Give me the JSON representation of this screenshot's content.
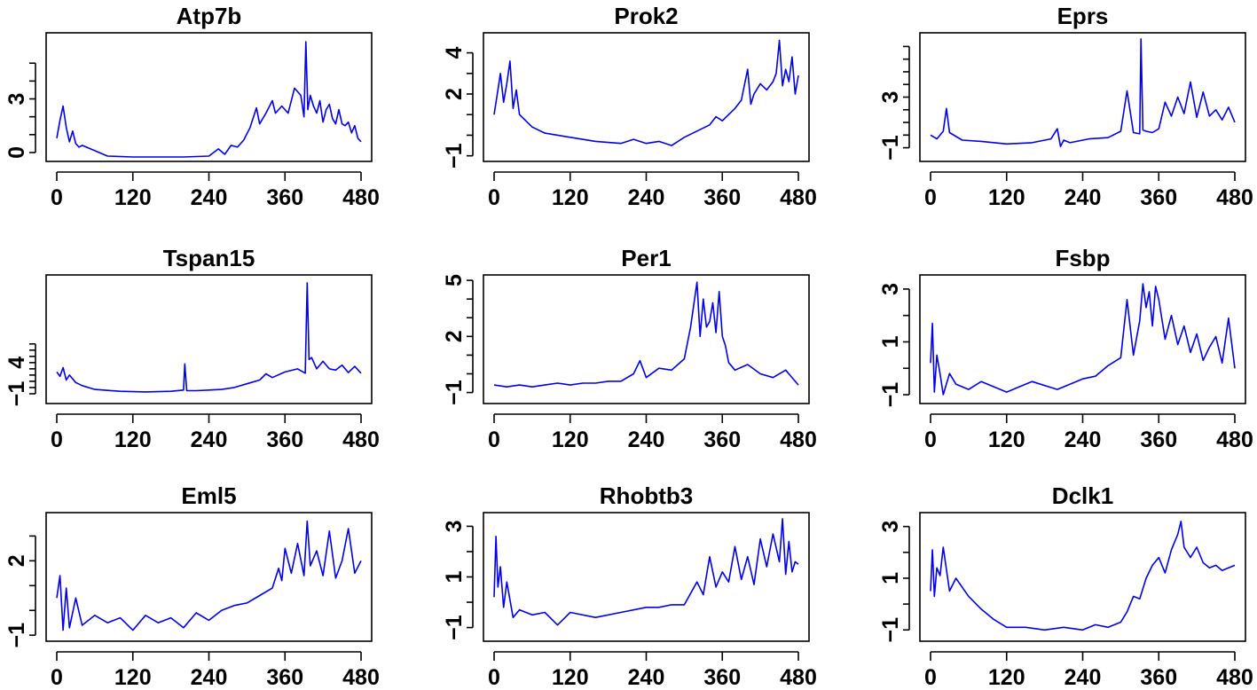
{
  "series_color": "#0000ee",
  "chart_data": [
    {
      "type": "line",
      "title": "Atp7b",
      "xlim": [
        0,
        480
      ],
      "ylim": [
        -0.3,
        6.5
      ],
      "xticks": [
        0,
        120,
        240,
        360,
        480
      ],
      "yticks": [
        0,
        3
      ],
      "ytick_labels": [
        "0",
        "3"
      ],
      "yminor": [
        0,
        1,
        2,
        3,
        4,
        5
      ],
      "x": [
        0,
        5,
        10,
        15,
        20,
        25,
        30,
        35,
        40,
        60,
        80,
        120,
        160,
        200,
        240,
        255,
        265,
        275,
        285,
        295,
        305,
        315,
        320,
        330,
        340,
        345,
        355,
        365,
        375,
        385,
        390,
        393,
        396,
        400,
        405,
        410,
        415,
        420,
        425,
        430,
        435,
        440,
        445,
        450,
        455,
        460,
        465,
        470,
        475,
        480
      ],
      "y": [
        0.8,
        1.8,
        2.6,
        1.4,
        0.6,
        1.2,
        0.5,
        0.3,
        0.4,
        0.1,
        -0.2,
        -0.25,
        -0.25,
        -0.25,
        -0.2,
        0.2,
        -0.1,
        0.4,
        0.3,
        0.7,
        1.4,
        2.5,
        1.6,
        2.2,
        2.9,
        2.2,
        2.6,
        2.2,
        3.6,
        3.2,
        2.0,
        6.2,
        2.4,
        3.2,
        2.6,
        2.2,
        2.9,
        1.7,
        2.4,
        2.7,
        1.9,
        1.6,
        2.4,
        1.6,
        1.5,
        1.7,
        1.1,
        1.5,
        0.8,
        0.6
      ]
    },
    {
      "type": "line",
      "title": "Prok2",
      "xlim": [
        0,
        480
      ],
      "ylim": [
        -1.1,
        4.8
      ],
      "xticks": [
        0,
        120,
        240,
        360,
        480
      ],
      "yticks": [
        -1,
        2,
        4
      ],
      "ytick_labels": [
        "−1",
        "2",
        "4"
      ],
      "yminor": [
        -1,
        0,
        1,
        2,
        3,
        4
      ],
      "x": [
        0,
        5,
        10,
        15,
        20,
        25,
        30,
        35,
        40,
        60,
        80,
        120,
        160,
        200,
        220,
        240,
        260,
        280,
        300,
        320,
        340,
        350,
        360,
        370,
        380,
        390,
        400,
        405,
        410,
        420,
        430,
        440,
        445,
        450,
        455,
        460,
        465,
        470,
        475,
        480
      ],
      "y": [
        1.0,
        2.0,
        3.0,
        1.6,
        2.5,
        3.6,
        1.3,
        2.2,
        1.0,
        0.4,
        0.1,
        -0.1,
        -0.3,
        -0.4,
        -0.2,
        -0.4,
        -0.3,
        -0.5,
        -0.1,
        0.2,
        0.5,
        0.9,
        0.7,
        1.0,
        1.3,
        1.7,
        3.2,
        1.5,
        2.0,
        2.5,
        2.2,
        2.6,
        3.0,
        4.6,
        2.4,
        3.2,
        2.6,
        3.8,
        2.0,
        2.9
      ]
    },
    {
      "type": "line",
      "title": "Eprs",
      "xlim": [
        0,
        480
      ],
      "ylim": [
        -1.8,
        7.8
      ],
      "xticks": [
        0,
        120,
        240,
        360,
        480
      ],
      "yticks": [
        -1,
        3
      ],
      "ytick_labels": [
        "−1",
        "3"
      ],
      "yminor": [
        -1,
        0,
        1,
        2,
        3,
        4,
        5,
        6,
        7
      ],
      "x": [
        0,
        10,
        20,
        25,
        30,
        50,
        80,
        120,
        160,
        190,
        200,
        205,
        210,
        220,
        250,
        280,
        300,
        310,
        320,
        330,
        332,
        335,
        340,
        350,
        360,
        370,
        380,
        390,
        400,
        410,
        420,
        430,
        440,
        450,
        460,
        470,
        480
      ],
      "y": [
        0.0,
        -0.3,
        0.3,
        2.1,
        0.2,
        -0.4,
        -0.5,
        -0.7,
        -0.6,
        -0.3,
        0.5,
        -0.9,
        -0.4,
        -0.6,
        -0.3,
        -0.2,
        0.3,
        3.5,
        0.2,
        0.1,
        7.6,
        0.4,
        0.3,
        0.2,
        0.5,
        2.6,
        1.5,
        3.0,
        1.7,
        4.2,
        1.4,
        3.4,
        1.5,
        2.0,
        1.2,
        2.2,
        1.0
      ]
    },
    {
      "type": "line",
      "title": "Tspan15",
      "xlim": [
        0,
        480
      ],
      "ylim": [
        -2.0,
        17.5
      ],
      "xticks": [
        0,
        120,
        240,
        360,
        480
      ],
      "yticks": [
        -1,
        4
      ],
      "ytick_labels": [
        "−1",
        "4"
      ],
      "yminor": [
        -1,
        0,
        1,
        2,
        3,
        4,
        5,
        6,
        7
      ],
      "x": [
        0,
        5,
        10,
        15,
        20,
        30,
        40,
        60,
        100,
        140,
        180,
        200,
        202,
        205,
        220,
        240,
        260,
        280,
        300,
        320,
        330,
        340,
        360,
        380,
        392,
        395,
        398,
        402,
        410,
        420,
        430,
        440,
        450,
        460,
        470,
        480
      ],
      "y": [
        2.5,
        1.8,
        3.2,
        1.2,
        2.0,
        0.8,
        0.3,
        -0.3,
        -0.6,
        -0.7,
        -0.6,
        -0.4,
        3.8,
        -0.5,
        -0.5,
        -0.4,
        -0.3,
        0.0,
        0.6,
        1.2,
        2.2,
        1.6,
        2.5,
        3.0,
        2.3,
        16.8,
        4.5,
        4.8,
        3.0,
        4.2,
        3.0,
        2.8,
        3.6,
        2.4,
        3.4,
        2.3
      ]
    },
    {
      "type": "line",
      "title": "Per1",
      "xlim": [
        0,
        480
      ],
      "ylim": [
        -1.4,
        5.1
      ],
      "xticks": [
        0,
        120,
        240,
        360,
        480
      ],
      "yticks": [
        -1,
        2,
        5
      ],
      "ytick_labels": [
        "−1",
        "2",
        "5"
      ],
      "yminor": [
        -1,
        0,
        1,
        2,
        3,
        4,
        5
      ],
      "x": [
        0,
        20,
        40,
        60,
        80,
        100,
        120,
        140,
        160,
        180,
        200,
        220,
        230,
        240,
        260,
        280,
        300,
        310,
        320,
        325,
        330,
        335,
        340,
        345,
        350,
        355,
        360,
        365,
        370,
        380,
        400,
        420,
        440,
        460,
        480
      ],
      "y": [
        -0.6,
        -0.7,
        -0.6,
        -0.7,
        -0.6,
        -0.5,
        -0.6,
        -0.5,
        -0.5,
        -0.4,
        -0.4,
        0.0,
        0.7,
        -0.2,
        0.3,
        0.2,
        0.8,
        2.5,
        4.9,
        2.0,
        4.0,
        2.5,
        2.8,
        3.8,
        2.2,
        4.4,
        2.0,
        1.5,
        0.6,
        0.2,
        0.5,
        0.0,
        -0.2,
        0.2,
        -0.6
      ]
    },
    {
      "type": "line",
      "title": "Fsbp",
      "xlim": [
        0,
        480
      ],
      "ylim": [
        -1.2,
        3.4
      ],
      "xticks": [
        0,
        120,
        240,
        360,
        480
      ],
      "yticks": [
        -1,
        1,
        3
      ],
      "ytick_labels": [
        "−1",
        "1",
        "3"
      ],
      "yminor": [
        -1,
        0,
        1,
        2,
        3
      ],
      "x": [
        0,
        3,
        6,
        10,
        15,
        20,
        30,
        40,
        60,
        80,
        120,
        160,
        200,
        240,
        260,
        280,
        300,
        310,
        320,
        330,
        335,
        340,
        345,
        350,
        355,
        360,
        370,
        380,
        390,
        400,
        410,
        420,
        430,
        440,
        450,
        460,
        470,
        480
      ],
      "y": [
        0.2,
        1.7,
        -0.9,
        0.5,
        -0.2,
        -1.0,
        -0.2,
        -0.6,
        -0.8,
        -0.5,
        -0.9,
        -0.5,
        -0.8,
        -0.4,
        -0.3,
        0.1,
        0.4,
        2.6,
        0.5,
        1.8,
        3.2,
        2.3,
        2.9,
        1.6,
        3.1,
        2.6,
        1.1,
        2.0,
        0.9,
        1.6,
        0.6,
        1.3,
        0.3,
        0.8,
        1.2,
        0.2,
        1.9,
        0.0
      ]
    },
    {
      "type": "line",
      "title": "Eml5",
      "xlim": [
        0,
        480
      ],
      "ylim": [
        -1.1,
        3.8
      ],
      "xticks": [
        0,
        120,
        240,
        360,
        480
      ],
      "yticks": [
        -1,
        2
      ],
      "ytick_labels": [
        "−1",
        "2"
      ],
      "yminor": [
        -1,
        0,
        1,
        2,
        3
      ],
      "x": [
        0,
        5,
        10,
        15,
        20,
        30,
        40,
        60,
        80,
        100,
        120,
        140,
        160,
        180,
        200,
        220,
        240,
        260,
        280,
        300,
        320,
        340,
        350,
        355,
        360,
        370,
        380,
        390,
        395,
        400,
        410,
        420,
        430,
        440,
        450,
        460,
        470,
        480
      ],
      "y": [
        0.5,
        1.4,
        -0.8,
        0.9,
        -0.7,
        0.5,
        -0.6,
        -0.2,
        -0.5,
        -0.3,
        -0.8,
        -0.2,
        -0.5,
        -0.3,
        -0.7,
        -0.1,
        -0.4,
        0.0,
        0.2,
        0.3,
        0.6,
        0.9,
        1.7,
        1.2,
        2.5,
        1.5,
        2.7,
        1.4,
        3.6,
        1.8,
        2.4,
        1.4,
        3.2,
        1.3,
        2.0,
        3.3,
        1.5,
        2.0
      ]
    },
    {
      "type": "line",
      "title": "Rhobtb3",
      "xlim": [
        0,
        480
      ],
      "ylim": [
        -1.4,
        3.4
      ],
      "xticks": [
        0,
        120,
        240,
        360,
        480
      ],
      "yticks": [
        -1,
        1,
        3
      ],
      "ytick_labels": [
        "−1",
        "1",
        "3"
      ],
      "yminor": [
        -1,
        0,
        1,
        2,
        3
      ],
      "x": [
        0,
        3,
        6,
        10,
        15,
        20,
        30,
        40,
        60,
        80,
        100,
        120,
        160,
        200,
        240,
        260,
        280,
        300,
        320,
        330,
        340,
        350,
        360,
        370,
        380,
        390,
        400,
        410,
        420,
        430,
        440,
        450,
        455,
        460,
        465,
        470,
        475,
        480
      ],
      "y": [
        0.2,
        2.6,
        0.6,
        1.4,
        -0.2,
        0.8,
        -0.6,
        -0.3,
        -0.5,
        -0.4,
        -0.9,
        -0.4,
        -0.6,
        -0.4,
        -0.2,
        -0.2,
        -0.1,
        -0.1,
        0.8,
        0.3,
        1.8,
        0.6,
        1.2,
        0.8,
        2.2,
        0.9,
        1.8,
        0.7,
        2.5,
        1.4,
        2.7,
        1.6,
        3.3,
        1.1,
        2.4,
        1.2,
        1.6,
        1.5
      ]
    },
    {
      "type": "line",
      "title": "Dclk1",
      "xlim": [
        0,
        480
      ],
      "ylim": [
        -1.3,
        3.4
      ],
      "xticks": [
        0,
        120,
        240,
        360,
        480
      ],
      "yticks": [
        -1,
        1,
        3
      ],
      "ytick_labels": [
        "−1",
        "1",
        "3"
      ],
      "yminor": [
        -1,
        0,
        1,
        2,
        3
      ],
      "x": [
        0,
        3,
        6,
        10,
        15,
        20,
        30,
        40,
        60,
        80,
        100,
        120,
        150,
        180,
        210,
        240,
        260,
        280,
        300,
        310,
        320,
        330,
        340,
        350,
        360,
        370,
        380,
        390,
        395,
        400,
        410,
        420,
        430,
        440,
        450,
        460,
        470,
        480
      ],
      "y": [
        0.5,
        2.1,
        0.3,
        1.4,
        1.1,
        2.2,
        0.5,
        1.0,
        0.3,
        -0.2,
        -0.6,
        -0.9,
        -0.9,
        -1.0,
        -0.9,
        -1.0,
        -0.8,
        -0.9,
        -0.7,
        -0.3,
        0.3,
        0.2,
        1.0,
        1.5,
        1.8,
        1.2,
        2.1,
        2.7,
        3.2,
        2.2,
        1.8,
        2.2,
        1.6,
        1.4,
        1.5,
        1.3,
        1.4,
        1.5
      ]
    }
  ]
}
